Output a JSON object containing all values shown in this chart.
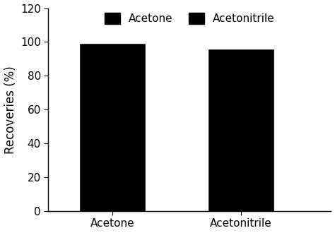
{
  "categories": [
    "Acetone",
    "Acetonitrile"
  ],
  "values": [
    98.5,
    95.0
  ],
  "hatch_patterns": [
    "....",
    "xxxx"
  ],
  "bar_facecolor": "#000000",
  "bar_edgecolor": "#000000",
  "bar_hatch_color": "#ffffff",
  "ylabel": "Recoveries (%)",
  "ylim": [
    0,
    120
  ],
  "yticks": [
    0,
    20,
    40,
    60,
    80,
    100,
    120
  ],
  "legend_labels": [
    "Acetone",
    "Acetonitrile"
  ],
  "bar_width": 0.5,
  "positions": [
    1,
    2
  ],
  "xlim": [
    0.5,
    2.7
  ],
  "background_color": "#ffffff",
  "tick_fontsize": 11,
  "label_fontsize": 12,
  "legend_fontsize": 11
}
